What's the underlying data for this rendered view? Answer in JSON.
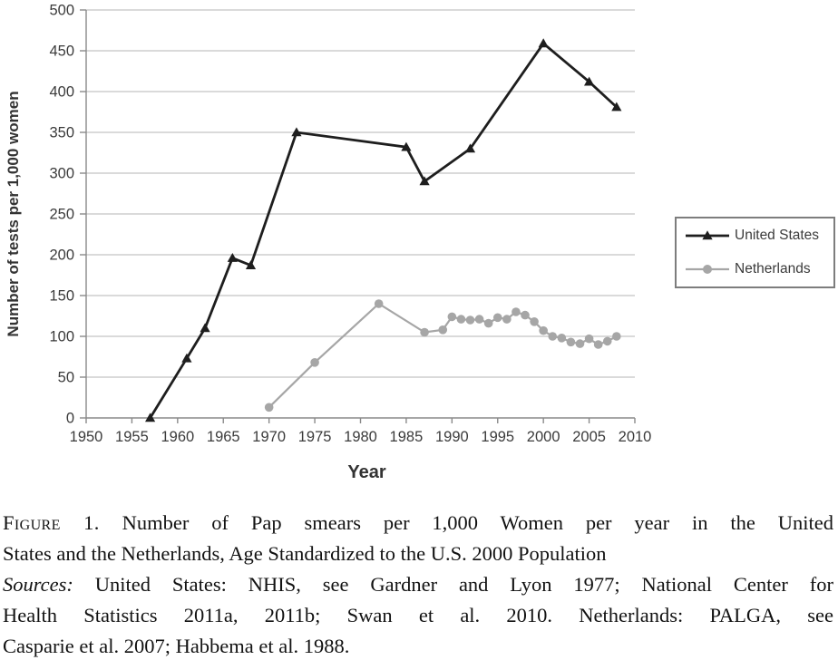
{
  "chart_data": {
    "type": "line",
    "title": "",
    "xlabel": "Year",
    "ylabel": "Number of tests per 1,000 women",
    "xlim": [
      1950,
      2010
    ],
    "ylim": [
      0,
      500
    ],
    "x_ticks": [
      1950,
      1955,
      1960,
      1965,
      1970,
      1975,
      1980,
      1985,
      1990,
      1995,
      2000,
      2005,
      2010
    ],
    "y_ticks": [
      0,
      50,
      100,
      150,
      200,
      250,
      300,
      350,
      400,
      450,
      500
    ],
    "grid": true,
    "legend_position": "outside-right",
    "series": [
      {
        "name": "United States",
        "marker": "triangle",
        "color": "#1e1e1e",
        "points": [
          [
            1957,
            0
          ],
          [
            1961,
            73
          ],
          [
            1963,
            110
          ],
          [
            1966,
            196
          ],
          [
            1968,
            187
          ],
          [
            1973,
            350
          ],
          [
            1985,
            332
          ],
          [
            1987,
            290
          ],
          [
            1992,
            330
          ],
          [
            2000,
            459
          ],
          [
            2005,
            412
          ],
          [
            2008,
            381
          ]
        ]
      },
      {
        "name": "Netherlands",
        "marker": "circle",
        "color": "#a6a6a6",
        "points": [
          [
            1970,
            13
          ],
          [
            1975,
            68
          ],
          [
            1982,
            140
          ],
          [
            1987,
            105
          ],
          [
            1989,
            108
          ],
          [
            1990,
            124
          ],
          [
            1991,
            121
          ],
          [
            1992,
            120
          ],
          [
            1993,
            121
          ],
          [
            1994,
            116
          ],
          [
            1995,
            123
          ],
          [
            1996,
            121
          ],
          [
            1997,
            130
          ],
          [
            1998,
            126
          ],
          [
            1999,
            118
          ],
          [
            2000,
            107
          ],
          [
            2001,
            100
          ],
          [
            2002,
            98
          ],
          [
            2003,
            93
          ],
          [
            2004,
            91
          ],
          [
            2005,
            97
          ],
          [
            2006,
            90
          ],
          [
            2007,
            94
          ],
          [
            2008,
            100
          ]
        ]
      }
    ]
  },
  "figure": {
    "caption": {
      "lines": [
        {
          "segments": [
            {
              "style": "figure-label",
              "text": "Figure 1."
            },
            {
              "style": "plain",
              "text": "Number of Pap smears per 1,000 Women per year in the United"
            }
          ],
          "last": false
        },
        {
          "segments": [
            {
              "style": "plain",
              "text": "States and the Netherlands, Age Standardized to the U.S. 2000 Population"
            }
          ],
          "last": true
        },
        {
          "segments": [
            {
              "style": "italic",
              "text": "Sources:"
            },
            {
              "style": "plain",
              "text": "United States: NHIS, see Gardner and Lyon 1977; National Center for"
            }
          ],
          "last": false
        },
        {
          "segments": [
            {
              "style": "plain",
              "text": "Health Statistics 2011a, 2011b; Swan et al. 2010. Netherlands: PALGA, see"
            }
          ],
          "last": false
        },
        {
          "segments": [
            {
              "style": "plain",
              "text": "Casparie et al. 2007; Habbema et al. 1988."
            }
          ],
          "last": true
        }
      ]
    }
  },
  "colors": {
    "background": "#ffffff",
    "gridline": "#c4c4c4",
    "axis": "#8a8a8a",
    "tick_label": "#3b3b3b",
    "axis_title": "#333333",
    "us_series": "#1e1e1e",
    "nl_series": "#a6a6a6",
    "legend_border": "#7d7d7d",
    "caption_text": "#121212"
  }
}
